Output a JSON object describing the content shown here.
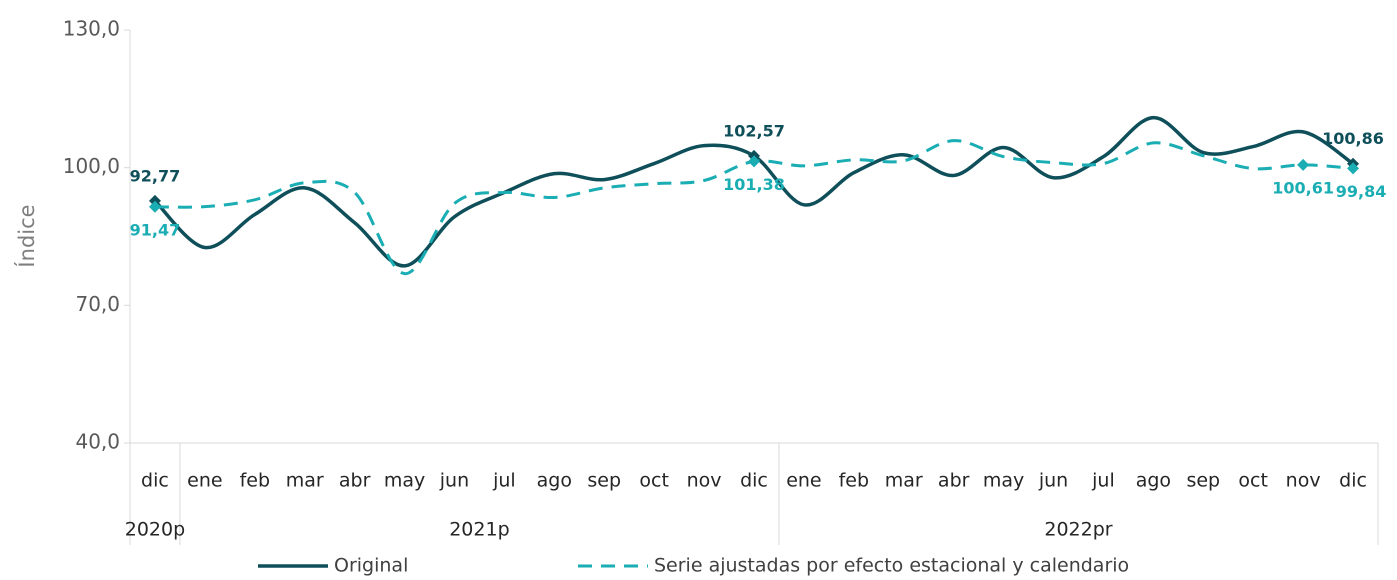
{
  "chart_data": {
    "type": "line",
    "y_label": "Índice",
    "categories": [
      "dic",
      "ene",
      "feb",
      "mar",
      "abr",
      "may",
      "jun",
      "jul",
      "ago",
      "sep",
      "oct",
      "nov",
      "dic",
      "ene",
      "feb",
      "mar",
      "abr",
      "may",
      "jun",
      "jul",
      "ago",
      "sep",
      "oct",
      "nov",
      "dic"
    ],
    "year_groups": [
      {
        "label": "2020p",
        "span": 1
      },
      {
        "label": "2021p",
        "span": 12
      },
      {
        "label": "2022pr",
        "span": 12
      }
    ],
    "series": [
      {
        "name": "Original",
        "color": "#0e4f5a",
        "dash": false,
        "values": [
          92.77,
          82.6,
          89.8,
          95.6,
          88.0,
          78.6,
          89.3,
          94.6,
          98.7,
          97.4,
          100.9,
          104.8,
          102.57,
          91.9,
          98.9,
          102.8,
          98.3,
          104.4,
          97.8,
          102.4,
          110.9,
          103.3,
          104.6,
          107.8,
          100.86
        ],
        "value_labels": [
          "92,77",
          null,
          null,
          null,
          null,
          null,
          null,
          null,
          null,
          null,
          null,
          null,
          "102,57",
          null,
          null,
          null,
          null,
          null,
          null,
          null,
          null,
          null,
          null,
          null,
          "100,86"
        ]
      },
      {
        "name": "Serie ajustadas por efecto estacional y calendario",
        "color": "#1aadb3",
        "dash": true,
        "values": [
          91.47,
          91.5,
          93.0,
          96.7,
          94.6,
          76.9,
          92.2,
          94.6,
          93.5,
          95.6,
          96.5,
          97.2,
          101.38,
          100.4,
          101.7,
          101.5,
          105.9,
          102.4,
          101.1,
          100.9,
          105.4,
          102.6,
          99.8,
          100.61,
          99.84
        ],
        "value_labels": [
          "91,47",
          null,
          null,
          null,
          null,
          null,
          null,
          null,
          null,
          null,
          null,
          null,
          "101,38",
          null,
          null,
          null,
          null,
          null,
          null,
          null,
          null,
          null,
          null,
          "100,61",
          "99,84"
        ]
      }
    ],
    "ylim": [
      40,
      130
    ],
    "yticks": [
      {
        "value": 40,
        "label": "40,0"
      },
      {
        "value": 70,
        "label": "70,0"
      },
      {
        "value": 100,
        "label": "100,0"
      },
      {
        "value": 130,
        "label": "130,0"
      }
    ],
    "grid": false,
    "legend": "bottom"
  }
}
